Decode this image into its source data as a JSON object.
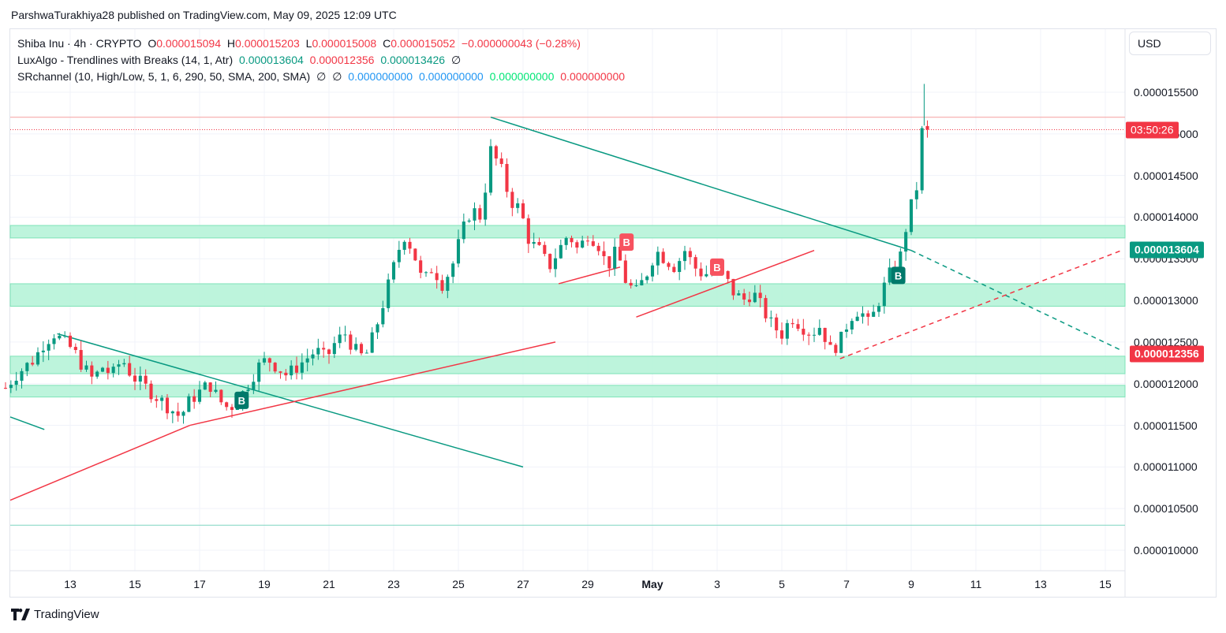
{
  "header": {
    "published_line": "ParshwaTurakhiya28 published on TradingView.com, May 09, 2025 12:09 UTC"
  },
  "legend": {
    "symbol": "Shiba Inu · 4h · CRYPTO",
    "ohlc": {
      "o_label": "O",
      "o": "0.000015094",
      "h_label": "H",
      "h": "0.000015203",
      "l_label": "L",
      "l": "0.000015008",
      "c_label": "C",
      "c": "0.000015052",
      "change": "−0.000000043 (−0.28%)"
    },
    "indicator1": {
      "name": "LuxAlgo - Trendlines with Breaks (14, 1, Atr)",
      "v1": "0.000013604",
      "v2": "0.000012356",
      "v3": "0.000013426",
      "v4": "∅"
    },
    "indicator2": {
      "name": "SRchannel (10, High/Low, 5, 1, 6, 290, 50, SMA, 200, SMA)",
      "v1": "∅",
      "v2": "∅",
      "v3": "0.000000000",
      "v4": "0.000000000",
      "v5": "0.000000000",
      "v6": "0.000000000"
    }
  },
  "currency": "USD",
  "price_tags": {
    "upper_trend": "0.000013604",
    "lower_trend": "0.000012356",
    "countdown": "03:50:26"
  },
  "footer": {
    "brand": "TradingView"
  },
  "colors": {
    "up": "#089981",
    "down": "#f23645",
    "zone": "#b2f2d6",
    "zone_border": "#7ee3b8",
    "res_line": "#f7a9a9",
    "bottom_line": "#7ed6c0"
  },
  "chart_data": {
    "type": "candlestick",
    "timeframe": "4h",
    "y_ticks": [
      "0.000015500",
      "0.000015000",
      "0.000014500",
      "0.000014000",
      "0.000013500",
      "0.000013000",
      "0.000012500",
      "0.000012000",
      "0.000011500",
      "0.000011000",
      "0.000010500",
      "0.000010000"
    ],
    "x_ticks": [
      {
        "label": "13",
        "day": 13
      },
      {
        "label": "15",
        "day": 15
      },
      {
        "label": "17",
        "day": 17
      },
      {
        "label": "19",
        "day": 19
      },
      {
        "label": "21",
        "day": 21
      },
      {
        "label": "23",
        "day": 23
      },
      {
        "label": "25",
        "day": 25
      },
      {
        "label": "27",
        "day": 27
      },
      {
        "label": "29",
        "day": 29
      },
      {
        "label": "May",
        "day": 31,
        "bold": true
      },
      {
        "label": "3",
        "day": 33
      },
      {
        "label": "5",
        "day": 35
      },
      {
        "label": "7",
        "day": 37
      },
      {
        "label": "9",
        "day": 39
      },
      {
        "label": "11",
        "day": 41
      },
      {
        "label": "13",
        "day": 43
      },
      {
        "label": "15",
        "day": 45
      }
    ],
    "day_origin_label": "April 11",
    "anchors": [
      [
        11.0,
        1.195e-05
      ],
      [
        11.3,
        1.21e-05
      ],
      [
        11.6,
        1.22e-05
      ],
      [
        11.9,
        1.23e-05
      ],
      [
        12.2,
        1.25e-05
      ],
      [
        12.5,
        1.26e-05
      ],
      [
        12.8,
        1.25e-05
      ],
      [
        13.1,
        1.24e-05
      ],
      [
        13.4,
        1.22e-05
      ],
      [
        13.7,
        1.205e-05
      ],
      [
        14.0,
        1.22e-05
      ],
      [
        14.3,
        1.21e-05
      ],
      [
        14.6,
        1.23e-05
      ],
      [
        14.9,
        1.21e-05
      ],
      [
        15.2,
        1.2e-05
      ],
      [
        15.5,
        1.19e-05
      ],
      [
        15.8,
        1.18e-05
      ],
      [
        16.1,
        1.17e-05
      ],
      [
        16.4,
        1.16e-05
      ],
      [
        16.7,
        1.18e-05
      ],
      [
        17.0,
        1.19e-05
      ],
      [
        17.3,
        1.2e-05
      ],
      [
        17.6,
        1.18e-05
      ],
      [
        17.9,
        1.17e-05
      ],
      [
        18.2,
        1.18e-05
      ],
      [
        18.5,
        1.2e-05
      ],
      [
        18.8,
        1.22e-05
      ],
      [
        19.1,
        1.23e-05
      ],
      [
        19.4,
        1.22e-05
      ],
      [
        19.7,
        1.21e-05
      ],
      [
        20.0,
        1.22e-05
      ],
      [
        20.3,
        1.23e-05
      ],
      [
        20.6,
        1.24e-05
      ],
      [
        20.9,
        1.23e-05
      ],
      [
        21.2,
        1.25e-05
      ],
      [
        21.5,
        1.26e-05
      ],
      [
        21.8,
        1.24e-05
      ],
      [
        22.1,
        1.23e-05
      ],
      [
        22.4,
        1.26e-05
      ],
      [
        22.7,
        1.3e-05
      ],
      [
        23.0,
        1.34e-05
      ],
      [
        23.3,
        1.38e-05
      ],
      [
        23.6,
        1.36e-05
      ],
      [
        23.9,
        1.32e-05
      ],
      [
        24.2,
        1.34e-05
      ],
      [
        24.5,
        1.32e-05
      ],
      [
        24.8,
        1.34e-05
      ],
      [
        25.1,
        1.38e-05
      ],
      [
        25.4,
        1.41e-05
      ],
      [
        25.7,
        1.4e-05
      ],
      [
        26.0,
        1.48e-05
      ],
      [
        26.3,
        1.46e-05
      ],
      [
        26.6,
        1.42e-05
      ],
      [
        26.9,
        1.41e-05
      ],
      [
        27.2,
        1.37e-05
      ],
      [
        27.5,
        1.36e-05
      ],
      [
        27.8,
        1.34e-05
      ],
      [
        28.1,
        1.36e-05
      ],
      [
        28.4,
        1.38e-05
      ],
      [
        28.7,
        1.36e-05
      ],
      [
        29.0,
        1.38e-05
      ],
      [
        29.3,
        1.37e-05
      ],
      [
        29.6,
        1.34e-05
      ],
      [
        29.9,
        1.36e-05
      ],
      [
        30.2,
        1.32e-05
      ],
      [
        30.5,
        1.31e-05
      ],
      [
        30.8,
        1.33e-05
      ],
      [
        31.1,
        1.36e-05
      ],
      [
        31.4,
        1.35e-05
      ],
      [
        31.7,
        1.34e-05
      ],
      [
        32.0,
        1.36e-05
      ],
      [
        32.3,
        1.34e-05
      ],
      [
        32.6,
        1.33e-05
      ],
      [
        32.9,
        1.34e-05
      ],
      [
        33.2,
        1.33e-05
      ],
      [
        33.5,
        1.31e-05
      ],
      [
        33.8,
        1.3e-05
      ],
      [
        34.1,
        1.31e-05
      ],
      [
        34.4,
        1.29e-05
      ],
      [
        34.7,
        1.27e-05
      ],
      [
        35.0,
        1.26e-05
      ],
      [
        35.3,
        1.28e-05
      ],
      [
        35.6,
        1.27e-05
      ],
      [
        35.9,
        1.26e-05
      ],
      [
        36.2,
        1.27e-05
      ],
      [
        36.5,
        1.24e-05
      ],
      [
        36.8,
        1.25e-05
      ],
      [
        37.1,
        1.28e-05
      ],
      [
        37.4,
        1.29e-05
      ],
      [
        37.7,
        1.27e-05
      ],
      [
        38.0,
        1.3e-05
      ],
      [
        38.3,
        1.33e-05
      ],
      [
        38.6,
        1.34e-05
      ],
      [
        38.9,
        1.4e-05
      ],
      [
        39.2,
        1.44e-05
      ],
      [
        39.35,
        1.51e-05
      ],
      [
        39.55,
        1.505e-05
      ]
    ],
    "zones": [
      {
        "top": 1.39e-05,
        "bottom": 1.375e-05
      },
      {
        "top": 1.32e-05,
        "bottom": 1.293e-05
      },
      {
        "top": 1.233e-05,
        "bottom": 1.212e-05
      },
      {
        "top": 1.198e-05,
        "bottom": 1.184e-05
      }
    ],
    "hlines": [
      {
        "price": 1.52e-05,
        "style": "resistance"
      },
      {
        "price": 1.505e-05,
        "style": "last-price"
      },
      {
        "price": 1.03e-05,
        "style": "support"
      }
    ],
    "trendlines": [
      {
        "color": "down",
        "from": [
          12.6,
          1.26e-05
        ],
        "to": [
          27.0,
          1.1e-05
        ],
        "dashed": false
      },
      {
        "color": "down",
        "from": [
          11.0,
          1.16e-05
        ],
        "to": [
          12.2,
          1.145e-05
        ],
        "dashed": false
      },
      {
        "color": "up",
        "from": [
          26.0,
          1.52e-05
        ],
        "to": [
          39.0,
          1.36e-05
        ],
        "dashed": false
      },
      {
        "color": "up",
        "from": [
          39.0,
          1.36e-05
        ],
        "to": [
          45.5,
          1.24e-05
        ],
        "dashed": true
      },
      {
        "color": "red",
        "from": [
          11.0,
          1.06e-05
        ],
        "to": [
          16.7,
          1.15e-05
        ],
        "dashed": false
      },
      {
        "color": "red",
        "from": [
          16.7,
          1.15e-05
        ],
        "to": [
          28.0,
          1.25e-05
        ],
        "dashed": false
      },
      {
        "color": "red",
        "from": [
          28.1,
          1.32e-05
        ],
        "to": [
          30.0,
          1.34e-05
        ],
        "dashed": false
      },
      {
        "color": "red",
        "from": [
          30.5,
          1.28e-05
        ],
        "to": [
          36.0,
          1.36e-05
        ],
        "dashed": false
      },
      {
        "color": "red",
        "from": [
          36.8,
          1.23e-05
        ],
        "to": [
          45.5,
          1.36e-05
        ],
        "dashed": true
      }
    ],
    "markers": [
      {
        "label": "B",
        "kind": "buy",
        "day": 18.3,
        "price": 1.18e-05
      },
      {
        "label": "B",
        "kind": "sell",
        "day": 30.2,
        "price": 1.37e-05
      },
      {
        "label": "B",
        "kind": "sell",
        "day": 33.0,
        "price": 1.34e-05
      },
      {
        "label": "B",
        "kind": "buy",
        "day": 38.6,
        "price": 1.33e-05
      }
    ]
  }
}
